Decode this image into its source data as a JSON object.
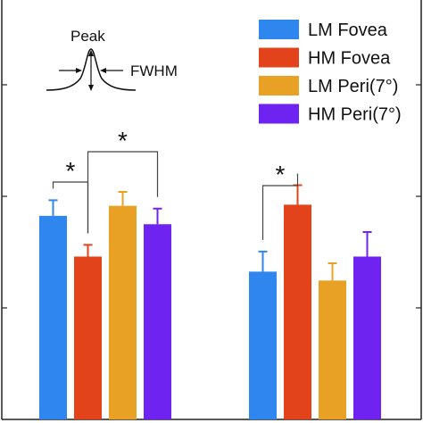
{
  "chart_data": {
    "type": "bar",
    "categories": [
      "",
      ""
    ],
    "series": [
      {
        "name": "LM Fovea",
        "color": "#2f86ee",
        "values": [
          0.365,
          0.265
        ],
        "errors": [
          0.028,
          0.036
        ]
      },
      {
        "name": "HM Fovea",
        "color": "#e2431a",
        "values": [
          0.292,
          0.385
        ],
        "errors": [
          0.021,
          0.035
        ]
      },
      {
        "name": "LM Peri(7°)",
        "color": "#e8a125",
        "values": [
          0.383,
          0.249
        ],
        "errors": [
          0.025,
          0.031
        ]
      },
      {
        "name": "HM Peri(7°)",
        "color": "#6f23f0",
        "values": [
          0.35,
          0.292
        ],
        "errors": [
          0.028,
          0.044
        ]
      }
    ],
    "ylim": [
      0,
      0.8
    ],
    "grid": false,
    "legend": {
      "position": "top-right"
    },
    "significance": [
      {
        "from": "LM Fovea",
        "to": "HM Fovea",
        "group": 0,
        "label": "*"
      },
      {
        "from": "HM Fovea",
        "to": "HM Peri(7°)",
        "group": 0,
        "label": "*"
      },
      {
        "from": "LM Fovea",
        "to": "HM Fovea",
        "group": 1,
        "label": "*"
      }
    ],
    "inset": {
      "peak_label": "Peak",
      "fwhm_label": "FWHM"
    }
  }
}
